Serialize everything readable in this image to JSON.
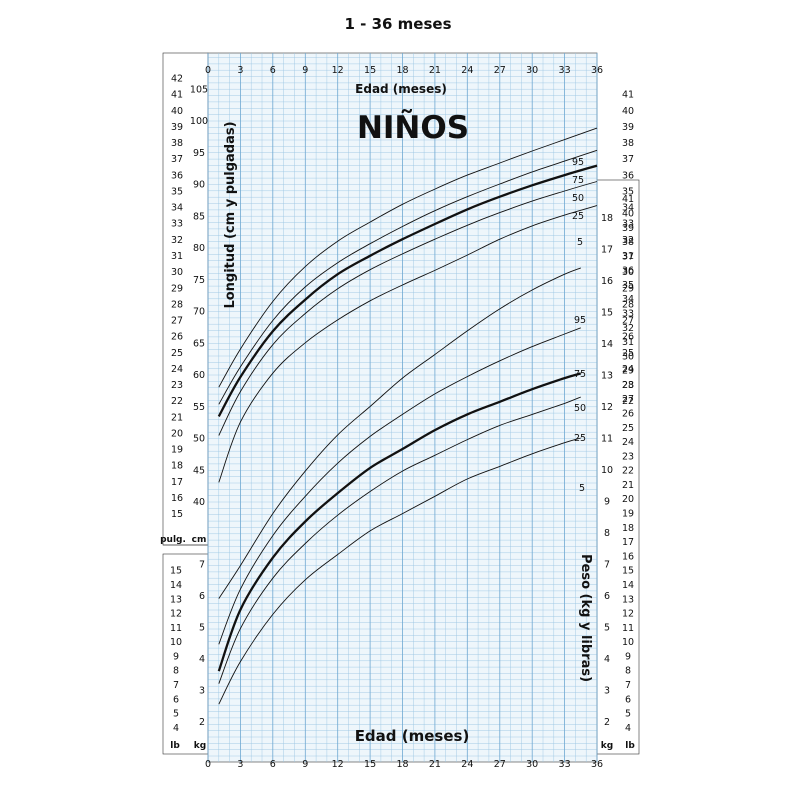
{
  "header": "1 - 36 meses",
  "title": "NIÑOS",
  "chart_data": [
    {
      "type": "line",
      "title": "NIÑOS",
      "xlabel": "Edad (meses)",
      "ylabel": "Longitud (cm y pulgadas)",
      "xlim": [
        0,
        36
      ],
      "ylim": [
        34,
        107
      ],
      "x_ticks": [
        0,
        3,
        6,
        9,
        12,
        15,
        18,
        21,
        24,
        27,
        30,
        33,
        36
      ],
      "cm_ticks": [
        40,
        45,
        50,
        55,
        60,
        65,
        70,
        75,
        80,
        85,
        90,
        95,
        100,
        105
      ],
      "in_ticks_left": [
        15,
        16,
        17,
        18,
        19,
        20,
        21,
        22,
        23,
        24,
        25,
        26,
        27,
        28,
        29,
        30,
        31,
        32,
        33,
        34,
        35,
        36,
        37,
        38,
        39,
        40,
        41,
        42
      ],
      "in_ticks_right": [
        22,
        23,
        24,
        25,
        26,
        27,
        28,
        29,
        30,
        31,
        32,
        33,
        34,
        35,
        36,
        37,
        38,
        39,
        40,
        41
      ],
      "unit_labels": {
        "in": "pulg.",
        "cm": "cm"
      },
      "grid": true,
      "series": [
        {
          "name": "95",
          "x": [
            1,
            3,
            6,
            9,
            12,
            15,
            18,
            21,
            24,
            27,
            30,
            33,
            36
          ],
          "y": [
            58,
            64,
            71.5,
            77,
            81,
            84,
            86.8,
            89.2,
            91.4,
            93.3,
            95.2,
            97,
            98.8
          ]
        },
        {
          "name": "75",
          "x": [
            1,
            3,
            6,
            9,
            12,
            15,
            18,
            21,
            24,
            27,
            30,
            33,
            36
          ],
          "y": [
            55.3,
            61.2,
            68.5,
            73.8,
            77.6,
            80.6,
            83.3,
            85.8,
            88,
            90,
            91.9,
            93.6,
            95.3
          ]
        },
        {
          "name": "50",
          "x": [
            1,
            3,
            6,
            9,
            12,
            15,
            18,
            21,
            24,
            27,
            30,
            33,
            36
          ],
          "y": [
            53.4,
            59.6,
            66.8,
            71.8,
            75.8,
            78.7,
            81.3,
            83.7,
            86,
            88,
            89.8,
            91.4,
            92.9
          ]
        },
        {
          "name": "25",
          "x": [
            1,
            3,
            6,
            9,
            12,
            15,
            18,
            21,
            24,
            27,
            30,
            33,
            36
          ],
          "y": [
            50.4,
            57.3,
            64.7,
            69.6,
            73.5,
            76.5,
            79,
            81.3,
            83.5,
            85.5,
            87.3,
            88.9,
            90.4
          ]
        },
        {
          "name": "5",
          "x": [
            1,
            3,
            6,
            9,
            12,
            15,
            18,
            21,
            24,
            27,
            30,
            33,
            36
          ],
          "y": [
            43,
            52.5,
            60.2,
            65,
            68.6,
            71.6,
            74.1,
            76.4,
            78.8,
            81.3,
            83.4,
            85.1,
            86.6
          ]
        }
      ]
    },
    {
      "type": "line",
      "xlabel": "Edad (meses)",
      "ylabel": "Peso (kg y libras)",
      "xlim": [
        0,
        36
      ],
      "ylim": [
        1.3,
        19.2
      ],
      "kg_ticks_left": [
        2,
        3,
        4,
        5,
        6,
        7
      ],
      "kg_ticks_right": [
        2,
        3,
        4,
        5,
        6,
        7,
        8,
        9,
        10,
        11,
        12,
        13,
        14,
        15,
        16,
        17,
        18
      ],
      "lb_ticks_left": [
        4,
        5,
        6,
        7,
        8,
        9,
        10,
        11,
        12,
        13,
        14,
        15
      ],
      "lb_ticks_right": [
        4,
        5,
        6,
        7,
        8,
        9,
        10,
        11,
        12,
        13,
        14,
        15,
        16,
        17,
        18,
        19,
        20,
        21,
        22,
        23,
        24,
        25,
        26,
        27,
        28,
        29,
        30,
        31,
        32,
        33,
        34,
        35,
        36,
        37,
        38,
        39,
        40,
        41
      ],
      "unit_labels": {
        "lb": "lb",
        "kg": "kg"
      },
      "grid": true,
      "series": [
        {
          "name": "95",
          "x": [
            1,
            3,
            6,
            9,
            12,
            15,
            18,
            21,
            24,
            27,
            30,
            33,
            34.5
          ],
          "y": [
            5.9,
            6.95,
            8.6,
            9.95,
            11.1,
            12,
            12.9,
            13.65,
            14.4,
            15.1,
            15.7,
            16.2,
            16.4
          ]
        },
        {
          "name": "75",
          "x": [
            1,
            3,
            6,
            9,
            12,
            15,
            18,
            21,
            24,
            27,
            30,
            33,
            34.5
          ],
          "y": [
            4.45,
            6.2,
            7.9,
            9.15,
            10.2,
            11.05,
            11.75,
            12.4,
            12.95,
            13.45,
            13.9,
            14.3,
            14.5
          ]
        },
        {
          "name": "50",
          "x": [
            1,
            3,
            6,
            9,
            12,
            15,
            18,
            21,
            24,
            27,
            30,
            33,
            34.5
          ],
          "y": [
            3.6,
            5.55,
            7.2,
            8.35,
            9.25,
            10.05,
            10.65,
            11.25,
            11.75,
            12.15,
            12.55,
            12.9,
            13.05
          ]
        },
        {
          "name": "25",
          "x": [
            1,
            3,
            6,
            9,
            12,
            15,
            18,
            21,
            24,
            27,
            30,
            33,
            34.5
          ],
          "y": [
            3.2,
            4.95,
            6.55,
            7.65,
            8.55,
            9.3,
            9.95,
            10.45,
            10.95,
            11.4,
            11.75,
            12.1,
            12.3
          ]
        },
        {
          "name": "5",
          "x": [
            1,
            3,
            6,
            9,
            12,
            15,
            18,
            21,
            24,
            27,
            30,
            33,
            34.5
          ],
          "y": [
            2.55,
            3.9,
            5.4,
            6.5,
            7.3,
            8.05,
            8.6,
            9.15,
            9.7,
            10.1,
            10.5,
            10.85,
            11
          ]
        }
      ]
    }
  ]
}
